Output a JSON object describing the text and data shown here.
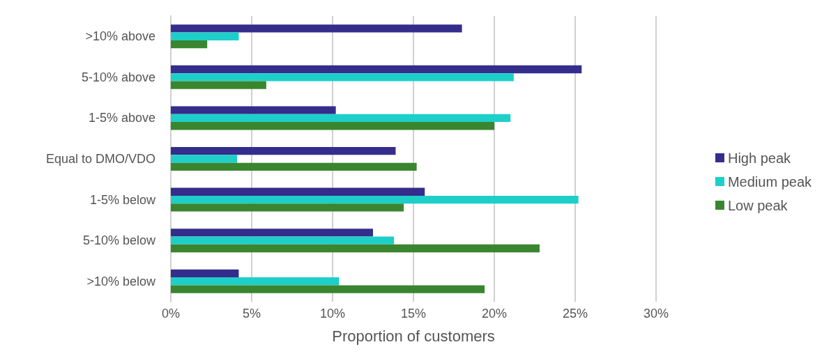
{
  "chart_data": {
    "type": "bar",
    "orientation": "horizontal",
    "xlabel": "Proportion of customers",
    "categories": [
      ">10% above",
      "5-10% above",
      "1-5% above",
      "Equal to DMO/VDO",
      "1-5% below",
      "5-10% below",
      ">10% below"
    ],
    "series": [
      {
        "name": "High peak",
        "color": "#342d8c",
        "values": [
          18.0,
          25.4,
          10.2,
          13.9,
          15.7,
          12.5,
          4.2
        ]
      },
      {
        "name": "Medium peak",
        "color": "#1ecfc9",
        "values": [
          4.2,
          21.2,
          21.0,
          4.1,
          25.2,
          13.8,
          10.4
        ]
      },
      {
        "name": "Low peak",
        "color": "#3a852f",
        "values": [
          2.25,
          5.9,
          20.0,
          15.2,
          14.4,
          22.8,
          19.4
        ]
      }
    ],
    "xlim": [
      0,
      30
    ],
    "xticks": [
      {
        "value": 0,
        "label": "0%"
      },
      {
        "value": 5,
        "label": "5%"
      },
      {
        "value": 10,
        "label": "10%"
      },
      {
        "value": 15,
        "label": "15%"
      },
      {
        "value": 20,
        "label": "20%"
      },
      {
        "value": 25,
        "label": "25%"
      },
      {
        "value": 30,
        "label": "30%"
      }
    ],
    "grid": "x",
    "legend": "right"
  }
}
